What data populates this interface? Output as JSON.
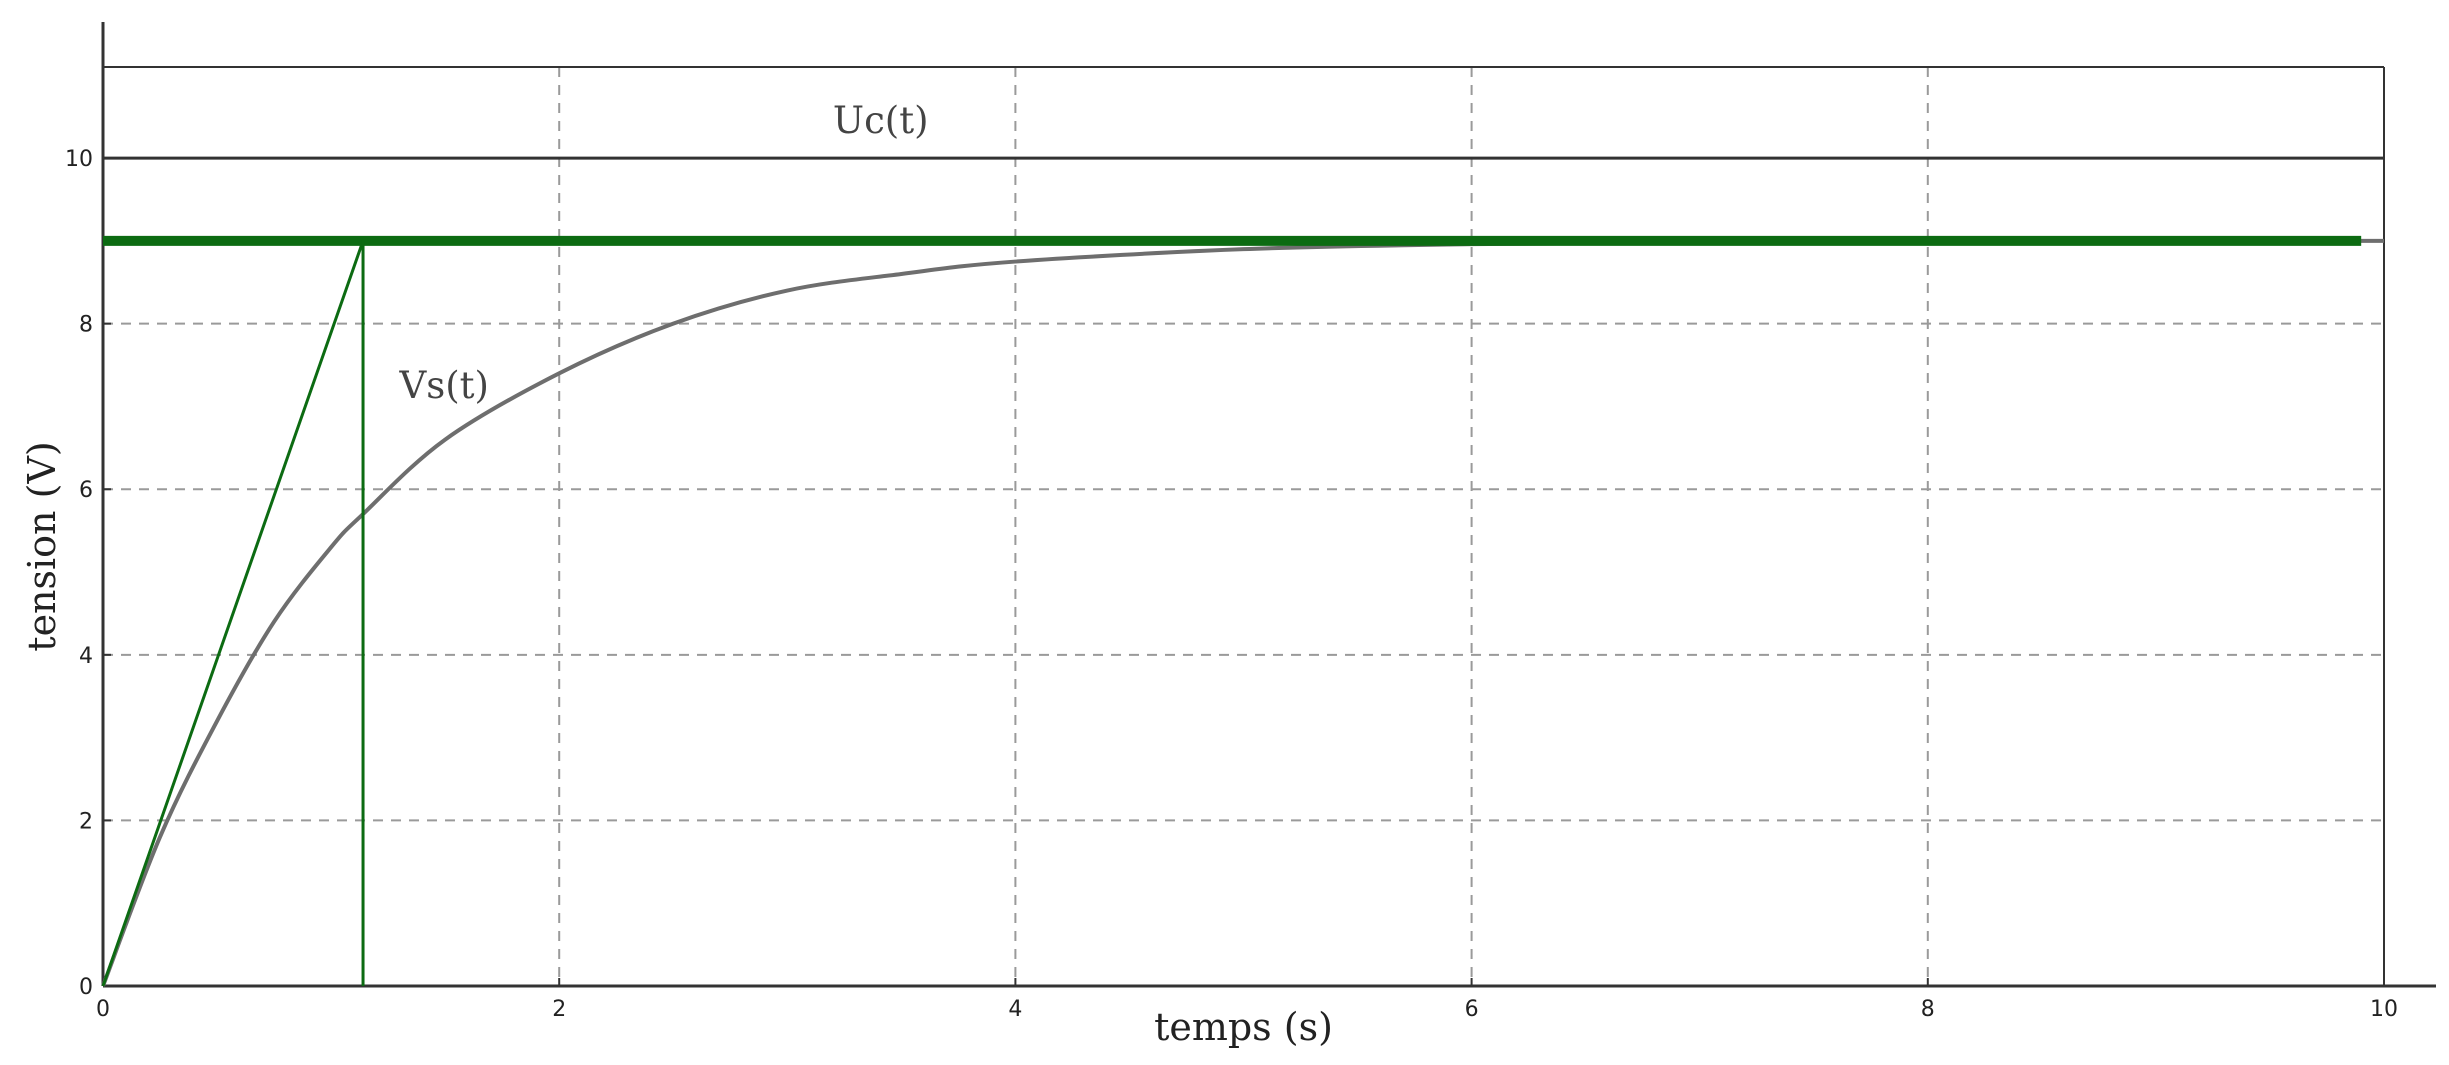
{
  "chart_data": {
    "type": "line",
    "xlabel": "temps (s)",
    "ylabel": "tension (V)",
    "xlim": [
      0,
      10
    ],
    "ylim": [
      0,
      11.1
    ],
    "x_ticks": [
      0,
      2,
      4,
      6,
      8,
      10
    ],
    "y_ticks": [
      0,
      2,
      4,
      6,
      8,
      10
    ],
    "x_tick_labels": [
      "0",
      "2",
      "4",
      "6",
      "8",
      "10"
    ],
    "y_tick_labels": [
      "0",
      "2",
      "4",
      "6",
      "8",
      "10"
    ],
    "grid": true,
    "series": [
      {
        "name": "Uc(t)",
        "kind": "constant",
        "color": "#333333",
        "x": [
          0,
          10
        ],
        "y": [
          10,
          10
        ]
      },
      {
        "name": "Vs(t)",
        "kind": "first_order_response",
        "color": "#6e6e6e",
        "x": [
          0,
          0.25,
          0.5,
          0.75,
          1.0,
          1.14,
          1.5,
          2.0,
          2.5,
          3.0,
          3.5,
          4.0,
          5.0,
          6.0,
          7.0,
          8.0,
          10.0
        ],
        "y": [
          0,
          1.8,
          3.2,
          4.4,
          5.3,
          5.7,
          6.6,
          7.4,
          8.0,
          8.4,
          8.6,
          8.75,
          8.9,
          8.96,
          8.98,
          9.0,
          9.0
        ]
      },
      {
        "kind": "final_value",
        "color": "#0c6b12",
        "x": [
          0,
          9.9
        ],
        "y": [
          9,
          9
        ]
      },
      {
        "kind": "tangent_at_origin",
        "color": "#0c6b12",
        "x": [
          0,
          1.14
        ],
        "y": [
          0,
          9
        ]
      },
      {
        "kind": "time_constant_marker",
        "color": "#0c6b12",
        "x": [
          1.14,
          1.14
        ],
        "y": [
          0,
          9
        ]
      }
    ],
    "annotations": [
      {
        "text": "Uc(t)",
        "x": 3.2,
        "y": 10.3
      },
      {
        "text": "Vs(t)",
        "x": 1.3,
        "y": 7.1
      }
    ]
  }
}
